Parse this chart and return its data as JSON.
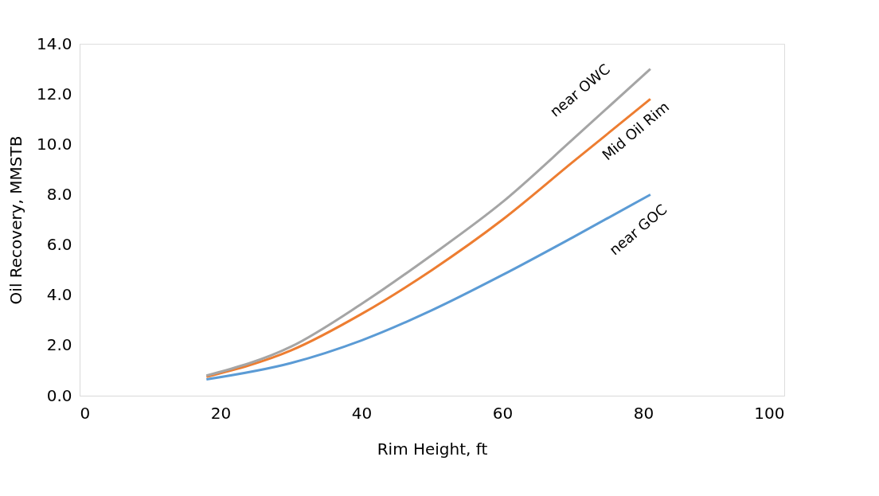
{
  "chart_data": {
    "type": "line",
    "xlabel": "Rim Height, ft",
    "ylabel": "Oil Recovery, MMSTB",
    "x": [
      18,
      30,
      40,
      50,
      60,
      70,
      81
    ],
    "series": [
      {
        "name": "near GOC",
        "color": "#5b9bd5",
        "values": [
          0.65,
          1.3,
          2.2,
          3.4,
          4.8,
          6.3,
          8.0
        ]
      },
      {
        "name": "Mid Oil Rim",
        "color": "#ed7d31",
        "values": [
          0.75,
          1.8,
          3.25,
          5.0,
          7.0,
          9.3,
          11.8
        ]
      },
      {
        "name": "near OWC",
        "color": "#a5a5a5",
        "values": [
          0.8,
          1.95,
          3.65,
          5.6,
          7.7,
          10.2,
          13.0
        ]
      }
    ],
    "xlim": [
      0,
      100
    ],
    "xticks": [
      0,
      20,
      40,
      60,
      80,
      100
    ],
    "ylim": [
      0,
      14
    ],
    "yticks": [
      {
        "value": 0,
        "label": "0.0"
      },
      {
        "value": 2,
        "label": "2.0"
      },
      {
        "value": 4,
        "label": "4.0"
      },
      {
        "value": 6,
        "label": "6.0"
      },
      {
        "value": 8,
        "label": "8.0"
      },
      {
        "value": 10,
        "label": "10.0"
      },
      {
        "value": 12,
        "label": "12.0"
      },
      {
        "value": 14,
        "label": "14.0"
      }
    ],
    "grid": false,
    "legend": false,
    "marker": "none",
    "line_style": "solid"
  }
}
